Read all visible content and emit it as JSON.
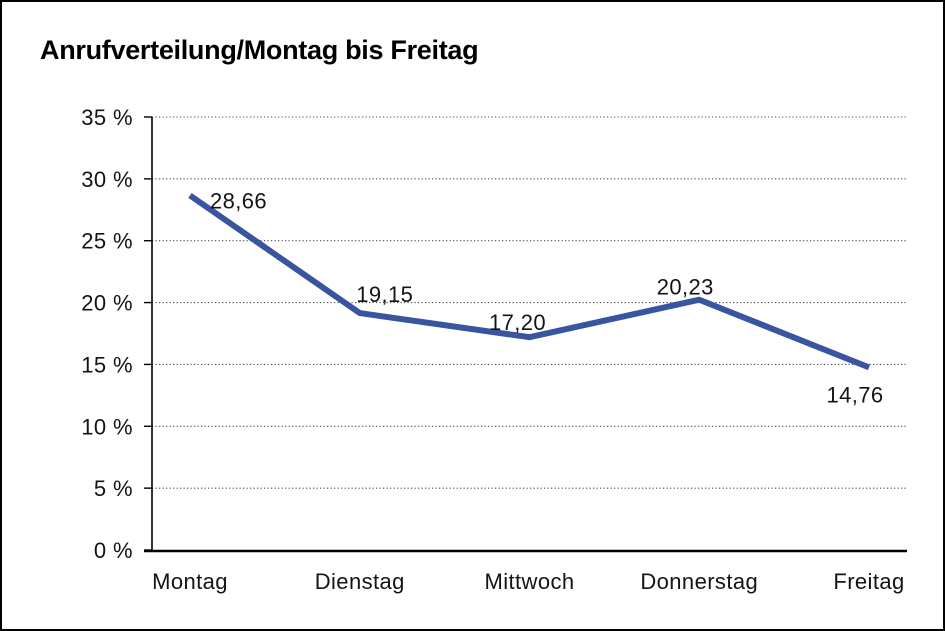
{
  "window": {
    "background": "#FFFFFF",
    "border_color": "#000000"
  },
  "chart_data": {
    "type": "line",
    "title": "Anrufverteilung/Montag bis Freitag",
    "categories": [
      "Montag",
      "Dienstag",
      "Mittwoch",
      "Donnerstag",
      "Freitag"
    ],
    "values": [
      28.66,
      19.15,
      17.2,
      20.23,
      14.76
    ],
    "point_labels": [
      "28,66",
      "19,15",
      "17,20",
      "20,23",
      "14,76"
    ],
    "xlabel": "",
    "ylabel": "",
    "ylim": [
      0,
      35
    ],
    "yticks": [
      0,
      5,
      10,
      15,
      20,
      25,
      30,
      35
    ],
    "ytick_labels": [
      "0 %",
      "5 %",
      "10 %",
      "15 %",
      "20 %",
      "25 %",
      "30 %",
      "35 %"
    ],
    "grid": "horizontal-dotted",
    "legend_position": "none",
    "line_color": "#3A55A0",
    "text_color": "#141414",
    "label_positions": [
      "right",
      "above",
      "above",
      "above",
      "below"
    ]
  }
}
